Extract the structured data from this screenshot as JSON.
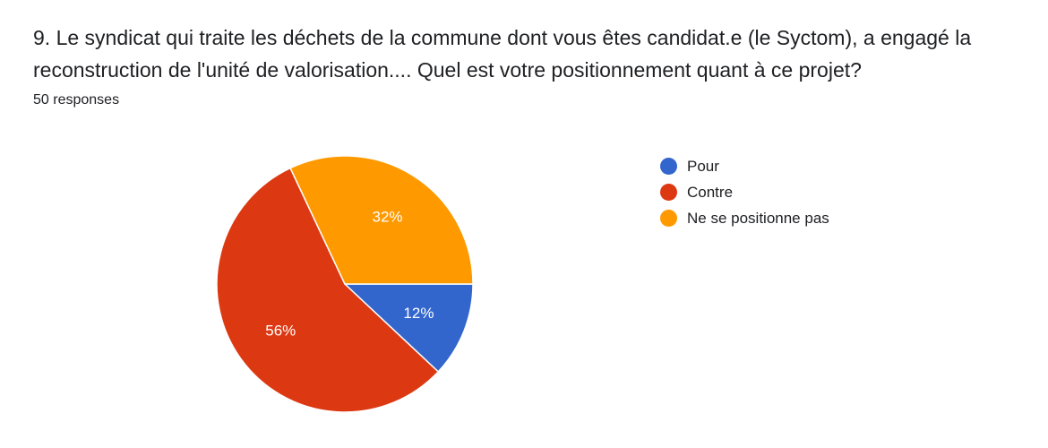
{
  "question": {
    "title": "9. Le syndicat qui traite les déchets de la commune dont vous êtes candidat.e (le Syctom), a engagé la reconstruction de l'unité de valorisation.... Quel est votre positionnement quant à ce projet?",
    "response_count": "50 responses"
  },
  "chart_data": {
    "type": "pie",
    "title": "",
    "slices": [
      {
        "label": "Pour",
        "value": 12,
        "display": "12%",
        "color": "#3366cc"
      },
      {
        "label": "Contre",
        "value": 56,
        "display": "56%",
        "color": "#dc3912"
      },
      {
        "label": "Ne se positionne pas",
        "value": 32,
        "display": "32%",
        "color": "#ff9900"
      }
    ],
    "legend_position": "right",
    "start_angle": "3 o'clock",
    "direction": "clockwise"
  }
}
